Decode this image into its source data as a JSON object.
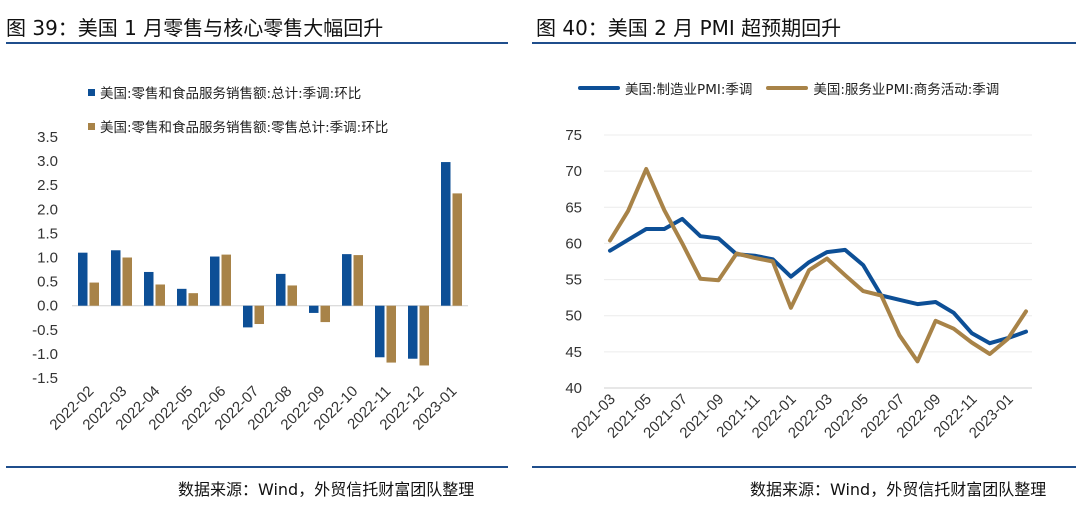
{
  "colors": {
    "blue": "#0d4f96",
    "gold": "#a88348",
    "rule": "#1f4e8c",
    "axis": "#d0d0d0"
  },
  "left": {
    "title": "图 39：美国 1 月零售与核心零售大幅回升",
    "source": "数据来源：Wind，外贸信托财富团队整理",
    "legend": [
      "美国:零售和食品服务销售额:总计:季调:环比",
      "美国:零售和食品服务销售额:零售总计:季调:环比"
    ]
  },
  "right": {
    "title": "图 40：美国 2 月 PMI 超预期回升",
    "source": "数据来源：Wind，外贸信托财富团队整理",
    "legend": [
      "美国:制造业PMI:季调",
      "美国:服务业PMI:商务活动:季调"
    ]
  },
  "chart_data": [
    {
      "type": "bar",
      "title": "",
      "xlabel": "",
      "ylabel": "",
      "ylim": [
        -1.5,
        3.5
      ],
      "yticks": [
        "3.5",
        "3.0",
        "2.5",
        "2.0",
        "1.5",
        "1.0",
        "0.5",
        "0.0",
        "-0.5",
        "-1.0",
        "-1.5"
      ],
      "legend_placement": "top-left",
      "categories": [
        "2022-02",
        "2022-03",
        "2022-04",
        "2022-05",
        "2022-06",
        "2022-07",
        "2022-08",
        "2022-09",
        "2022-10",
        "2022-11",
        "2022-12",
        "2023-01"
      ],
      "series": [
        {
          "name": "美国:零售和食品服务销售额:总计:季调:环比",
          "values": [
            1.1,
            1.15,
            0.7,
            0.35,
            1.02,
            -0.45,
            0.66,
            -0.15,
            1.07,
            -1.07,
            -1.1,
            2.98
          ]
        },
        {
          "name": "美国:零售和食品服务销售额:零售总计:季调:环比",
          "values": [
            0.48,
            1.0,
            0.44,
            0.26,
            1.06,
            -0.38,
            0.42,
            -0.34,
            1.05,
            -1.18,
            -1.24,
            2.33
          ]
        }
      ]
    },
    {
      "type": "line",
      "title": "",
      "xlabel": "",
      "ylabel": "",
      "ylim": [
        40,
        75
      ],
      "yticks": [
        "75",
        "70",
        "65",
        "60",
        "55",
        "50",
        "45",
        "40"
      ],
      "legend_placement": "top",
      "x": [
        "2021-03",
        "2021-04",
        "2021-05",
        "2021-06",
        "2021-07",
        "2021-08",
        "2021-09",
        "2021-10",
        "2021-11",
        "2021-12",
        "2022-01",
        "2022-02",
        "2022-03",
        "2022-04",
        "2022-05",
        "2022-06",
        "2022-07",
        "2022-08",
        "2022-09",
        "2022-10",
        "2022-11",
        "2022-12",
        "2023-01",
        "2023-02"
      ],
      "xtick_labels": [
        "2021-03",
        "2021-05",
        "2021-07",
        "2021-09",
        "2021-11",
        "2022-01",
        "2022-03",
        "2022-05",
        "2022-07",
        "2022-09",
        "2022-11",
        "2023-01"
      ],
      "series": [
        {
          "name": "美国:制造业PMI:季调",
          "values": [
            59.0,
            60.5,
            62.0,
            62.0,
            63.4,
            61.0,
            60.7,
            58.5,
            58.3,
            57.8,
            55.4,
            57.4,
            58.8,
            59.1,
            57.0,
            52.8,
            52.2,
            51.6,
            51.9,
            50.4,
            47.6,
            46.2,
            46.9,
            47.8
          ]
        },
        {
          "name": "美国:服务业PMI:商务活动:季调",
          "values": [
            60.4,
            64.5,
            70.3,
            64.6,
            60.0,
            55.1,
            54.9,
            58.6,
            58.0,
            57.5,
            51.1,
            56.3,
            57.9,
            55.6,
            53.4,
            52.8,
            47.3,
            43.7,
            49.3,
            48.2,
            46.3,
            44.7,
            46.8,
            50.6
          ]
        }
      ]
    }
  ]
}
